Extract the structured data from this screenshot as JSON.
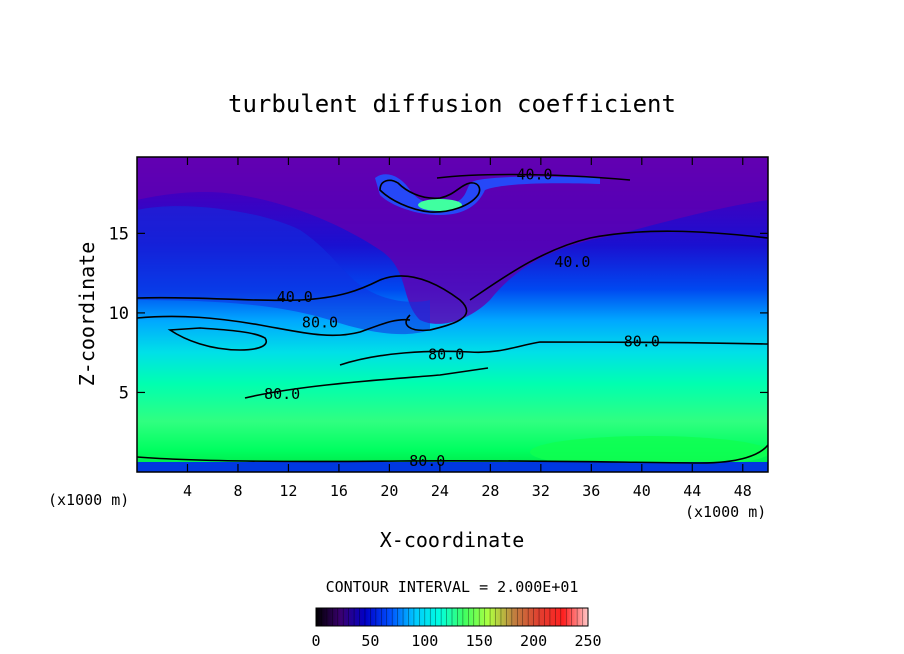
{
  "chart_data": {
    "type": "heatmap",
    "title": "turbulent diffusion coefficient",
    "xlabel": "X-coordinate",
    "ylabel": "Z-coordinate",
    "x_unit": "(x1000 m)",
    "x_unit_right": "(x1000 m)",
    "xlim": [
      0,
      50
    ],
    "ylim": [
      0,
      19.8
    ],
    "x_ticks": [
      4,
      8,
      12,
      16,
      20,
      24,
      28,
      32,
      36,
      40,
      44,
      48
    ],
    "y_ticks": [
      5,
      10,
      15
    ],
    "contour_interval_text": "CONTOUR INTERVAL = 2.000E+01",
    "colorbar": {
      "min": 0,
      "max": 250,
      "ticks": [
        0,
        50,
        100,
        150,
        200,
        250
      ],
      "colors": [
        "#000000",
        "#3a0070",
        "#0000c8",
        "#0050ff",
        "#00c8ff",
        "#00ffe0",
        "#40ff60",
        "#b0ff40",
        "#c08040",
        "#e04030",
        "#ff2020",
        "#ffc8c8"
      ]
    },
    "contour_labels": [
      {
        "text": "40.0",
        "x": 31.5,
        "y": 18.7
      },
      {
        "text": "40.0",
        "x": 34.5,
        "y": 13.2
      },
      {
        "text": "40.0",
        "x": 12.5,
        "y": 11.0
      },
      {
        "text": "80.0",
        "x": 14.5,
        "y": 9.4
      },
      {
        "text": "80.0",
        "x": 24.5,
        "y": 7.4
      },
      {
        "text": "80.0",
        "x": 40,
        "y": 8.2
      },
      {
        "text": "80.0",
        "x": 11.5,
        "y": 4.9
      },
      {
        "text": "80.0",
        "x": 23,
        "y": 0.7
      }
    ]
  }
}
